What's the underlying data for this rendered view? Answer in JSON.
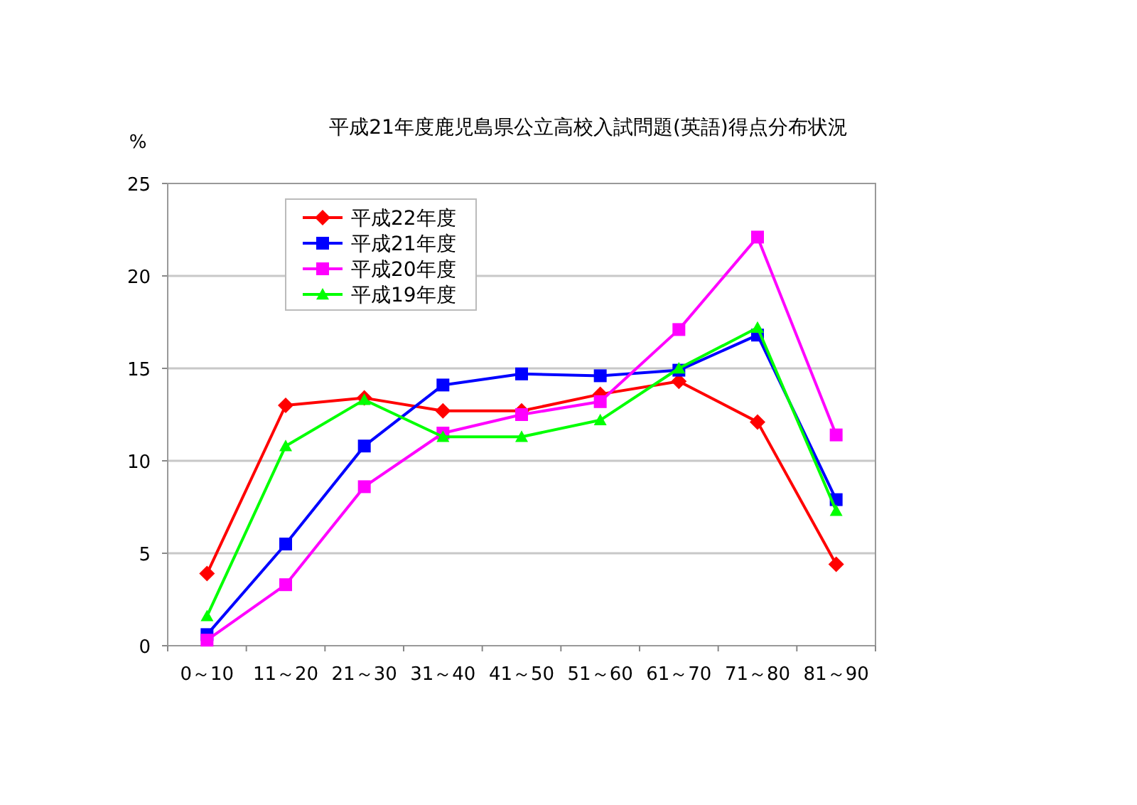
{
  "chart_data": {
    "type": "line",
    "title": "平成21年度鹿児島県公立高校入試問題(英語)得点分布状況",
    "ylabel": "%",
    "categories": [
      "0～10",
      "11～20",
      "21～30",
      "31～40",
      "41～50",
      "51～60",
      "61～70",
      "71～80",
      "81～90"
    ],
    "series": [
      {
        "name": "平成22年度",
        "color": "#ff0000",
        "marker": "diamond",
        "values": [
          3.9,
          13.0,
          13.4,
          12.7,
          12.7,
          13.6,
          14.3,
          12.1,
          4.4
        ]
      },
      {
        "name": "平成21年度",
        "color": "#0000ff",
        "marker": "square",
        "values": [
          0.6,
          5.5,
          10.8,
          14.1,
          14.7,
          14.6,
          14.9,
          16.8,
          7.9
        ]
      },
      {
        "name": "平成20年度",
        "color": "#ff00ff",
        "marker": "square",
        "values": [
          0.3,
          3.3,
          8.6,
          11.5,
          12.5,
          13.2,
          17.1,
          22.1,
          11.4
        ]
      },
      {
        "name": "平成19年度",
        "color": "#00ff00",
        "marker": "triangle",
        "values": [
          1.6,
          10.8,
          13.3,
          11.3,
          11.3,
          12.2,
          15.0,
          17.2,
          7.3
        ]
      }
    ],
    "ylim": [
      0,
      25
    ],
    "yticks": [
      0,
      5,
      10,
      15,
      20,
      25
    ],
    "grid": "y",
    "legend": "top left"
  }
}
